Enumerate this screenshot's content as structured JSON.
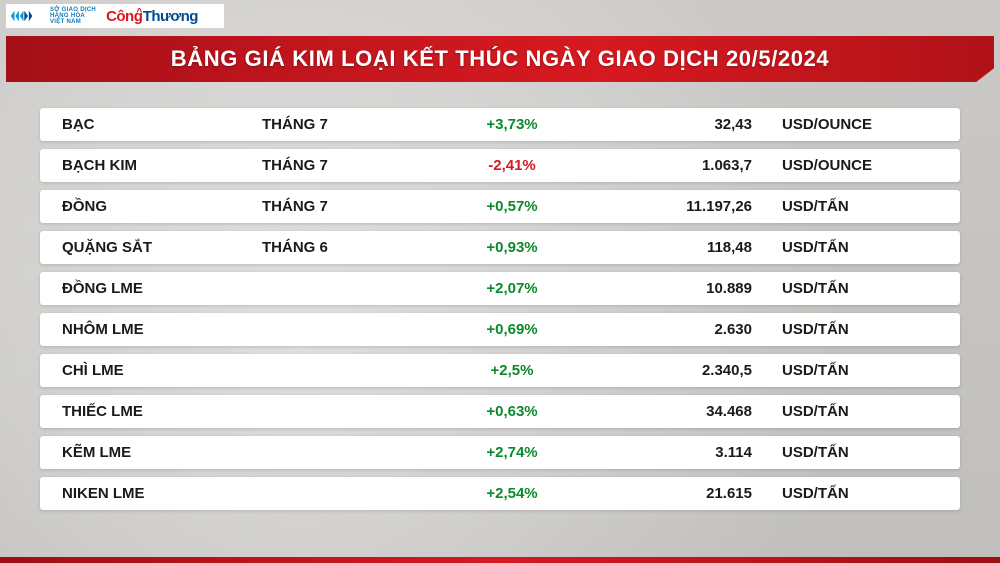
{
  "logo": {
    "org_line1": "SỞ GIAO DỊCH",
    "org_line2": "HÀNG HÓA",
    "org_line3": "VIỆT NAM",
    "brand_part1": "Công",
    "brand_part2": "Thương"
  },
  "title": "BẢNG GIÁ KIM LOẠI KẾT THÚC NGÀY GIAO DỊCH 20/5/2024",
  "colors": {
    "up": "#0a8a2a",
    "down": "#d71920",
    "title_bg_from": "#a30f17",
    "title_bg_to": "#d71920",
    "row_bg": "#ffffff",
    "page_bg": "#e8e6e3"
  },
  "columns": [
    "name",
    "month",
    "change",
    "price",
    "unit"
  ],
  "rows": [
    {
      "name": "BẠC",
      "month": "THÁNG 7",
      "change": "+3,73%",
      "dir": "up",
      "price": "32,43",
      "unit": "USD/OUNCE"
    },
    {
      "name": "BẠCH KIM",
      "month": "THÁNG 7",
      "change": "-2,41%",
      "dir": "down",
      "price": "1.063,7",
      "unit": "USD/OUNCE"
    },
    {
      "name": "ĐỒNG",
      "month": "THÁNG 7",
      "change": "+0,57%",
      "dir": "up",
      "price": "11.197,26",
      "unit": "USD/TẤN"
    },
    {
      "name": "QUẶNG SẮT",
      "month": "THÁNG 6",
      "change": "+0,93%",
      "dir": "up",
      "price": "118,48",
      "unit": "USD/TẤN"
    },
    {
      "name": "ĐỒNG LME",
      "month": "",
      "change": "+2,07%",
      "dir": "up",
      "price": "10.889",
      "unit": "USD/TẤN"
    },
    {
      "name": "NHÔM LME",
      "month": "",
      "change": "+0,69%",
      "dir": "up",
      "price": "2.630",
      "unit": "USD/TẤN"
    },
    {
      "name": "CHÌ LME",
      "month": "",
      "change": "+2,5%",
      "dir": "up",
      "price": "2.340,5",
      "unit": "USD/TẤN"
    },
    {
      "name": "THIẾC LME",
      "month": "",
      "change": "+0,63%",
      "dir": "up",
      "price": "34.468",
      "unit": "USD/TẤN"
    },
    {
      "name": "KẼM LME",
      "month": "",
      "change": "+2,74%",
      "dir": "up",
      "price": "3.114",
      "unit": "USD/TẤN"
    },
    {
      "name": "NIKEN LME",
      "month": "",
      "change": "+2,54%",
      "dir": "up",
      "price": "21.615",
      "unit": "USD/TẤN"
    }
  ]
}
